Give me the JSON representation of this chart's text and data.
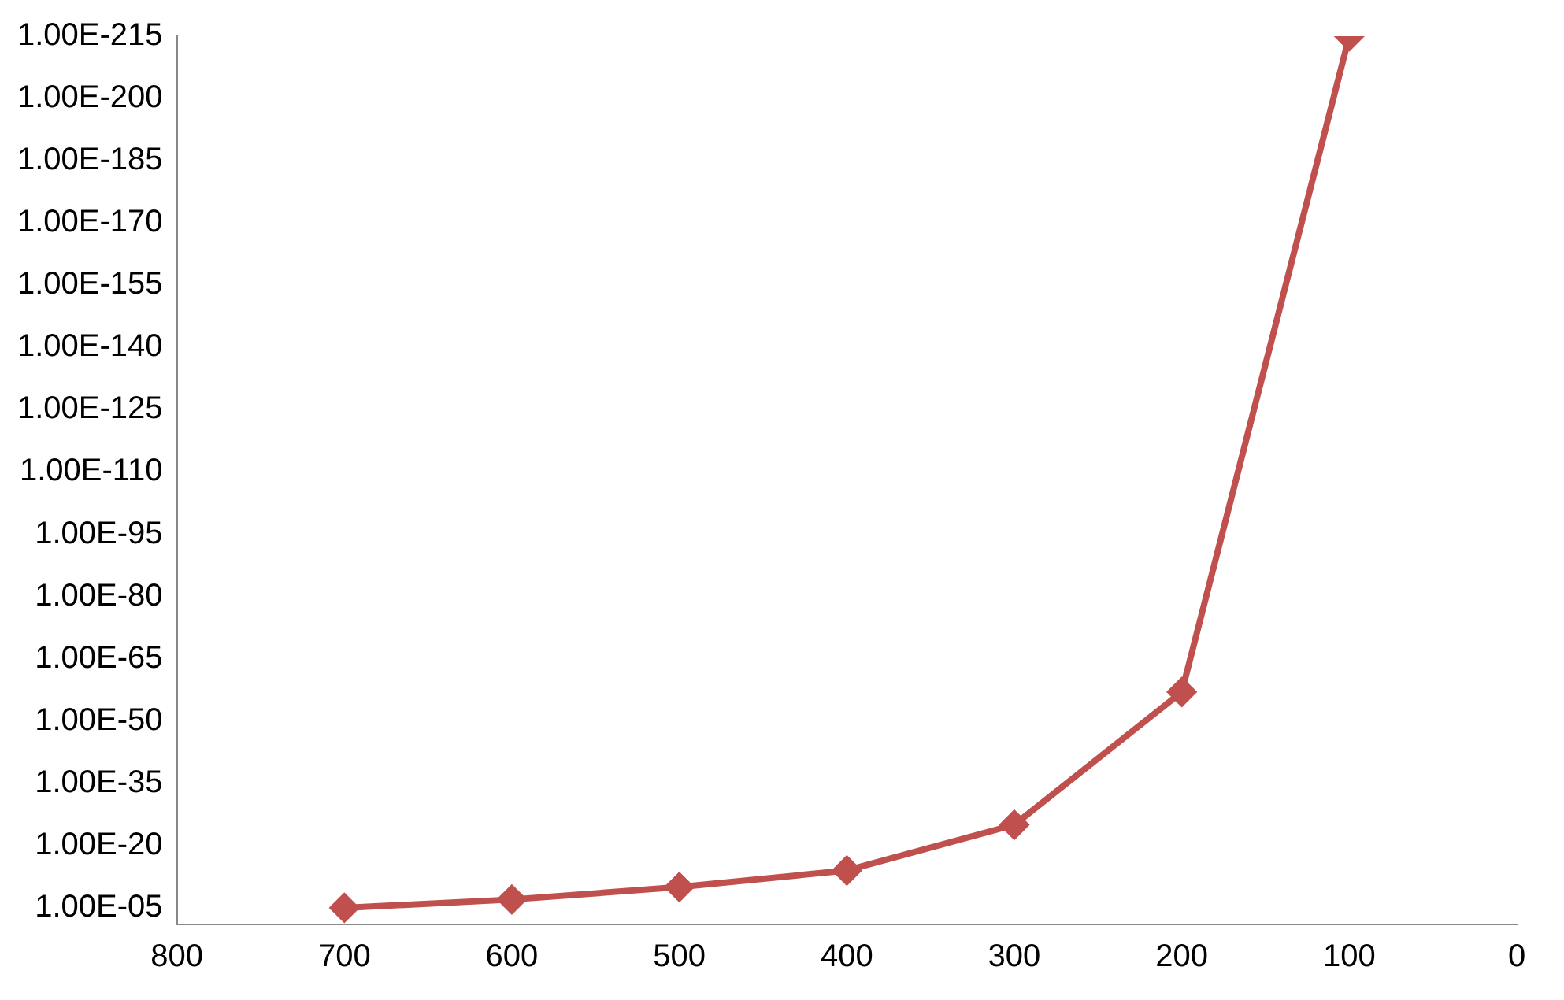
{
  "chart_data": {
    "type": "line",
    "x": [
      700,
      600,
      500,
      400,
      300,
      200,
      100
    ],
    "series": [
      {
        "color": "#c0504d",
        "values": [
          1e-05,
          1e-07,
          1e-10,
          1e-14,
          1e-25,
          1e-57,
          1e-215
        ]
      }
    ],
    "xlim": [
      800,
      0
    ],
    "xticks": [
      800,
      700,
      600,
      500,
      400,
      300,
      200,
      100,
      0
    ],
    "ylim": [
      0.1,
      1e-215
    ],
    "log": "y",
    "yticks": [
      {
        "value": 1e-05,
        "label": "1.00E-05"
      },
      {
        "value": 1e-20,
        "label": "1.00E-20"
      },
      {
        "value": 1e-35,
        "label": "1.00E-35"
      },
      {
        "value": 1e-50,
        "label": "1.00E-50"
      },
      {
        "value": 1e-65,
        "label": "1.00E-65"
      },
      {
        "value": 1e-80,
        "label": "1.00E-80"
      },
      {
        "value": 1e-95,
        "label": "1.00E-95"
      },
      {
        "value": 1e-110,
        "label": "1.00E-110"
      },
      {
        "value": 1e-125,
        "label": "1.00E-125"
      },
      {
        "value": 1e-140,
        "label": "1.00E-140"
      },
      {
        "value": 1e-155,
        "label": "1.00E-155"
      },
      {
        "value": 1e-170,
        "label": "1.00E-170"
      },
      {
        "value": 1e-185,
        "label": "1.00E-185"
      },
      {
        "value": 1e-200,
        "label": "1.00E-200"
      },
      {
        "value": 1e-215,
        "label": "1.00E-215"
      }
    ],
    "marker": "diamond",
    "line_style": "solid",
    "grid": false,
    "legend": false
  }
}
